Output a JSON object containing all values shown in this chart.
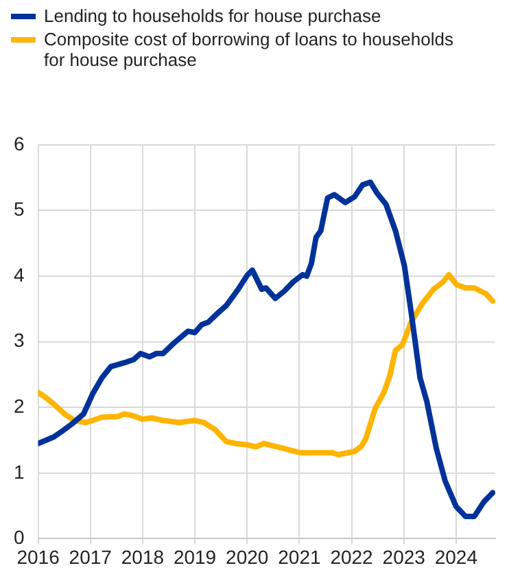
{
  "chart_data": {
    "type": "line",
    "xlim": [
      2016,
      2024.75
    ],
    "xticks": [
      2016,
      2017,
      2018,
      2019,
      2020,
      2021,
      2022,
      2023,
      2024
    ],
    "ylim": [
      0,
      6
    ],
    "yticks": [
      0,
      1,
      2,
      3,
      4,
      5,
      6
    ],
    "grid": true,
    "legend": "top left",
    "marker": "none",
    "line_style": "solid",
    "series": [
      {
        "name": "Lending to households for house purchase",
        "color": "#003299",
        "x": [
          2016,
          2016.3,
          2016.48,
          2016.65,
          2016.87,
          2017.04,
          2017.22,
          2017.39,
          2017.65,
          2017.83,
          2017.96,
          2018.13,
          2018.26,
          2018.39,
          2018.6,
          2018.87,
          2019.0,
          2019.13,
          2019.26,
          2019.43,
          2019.6,
          2019.83,
          2020.0,
          2020.1,
          2020.28,
          2020.36,
          2020.54,
          2020.71,
          2020.88,
          2021.06,
          2021.14,
          2021.23,
          2021.32,
          2021.41,
          2021.54,
          2021.67,
          2021.88,
          2022.06,
          2022.21,
          2022.36,
          2022.49,
          2022.66,
          2022.84,
          2023.01,
          2023.14,
          2023.31,
          2023.44,
          2023.62,
          2023.79,
          2024.0,
          2024.18,
          2024.35,
          2024.53,
          2024.7
        ],
        "values": [
          1.45,
          1.55,
          1.65,
          1.75,
          1.9,
          2.2,
          2.45,
          2.62,
          2.68,
          2.73,
          2.82,
          2.77,
          2.82,
          2.82,
          2.98,
          3.16,
          3.14,
          3.26,
          3.3,
          3.43,
          3.55,
          3.8,
          4.01,
          4.09,
          3.8,
          3.82,
          3.66,
          3.77,
          3.91,
          4.02,
          4.0,
          4.19,
          4.59,
          4.69,
          5.19,
          5.24,
          5.12,
          5.21,
          5.39,
          5.43,
          5.26,
          5.09,
          4.69,
          4.16,
          3.45,
          2.45,
          2.09,
          1.38,
          0.88,
          0.49,
          0.34,
          0.34,
          0.56,
          0.7
        ]
      },
      {
        "name": "Composite cost of borrowing of loans to households for house purchase",
        "color": "#ffb400",
        "x": [
          2016,
          2016.13,
          2016.3,
          2016.52,
          2016.7,
          2016.91,
          2017.04,
          2017.22,
          2017.52,
          2017.65,
          2017.83,
          2018.0,
          2018.17,
          2018.39,
          2018.7,
          2019.0,
          2019.17,
          2019.39,
          2019.6,
          2019.78,
          2020.0,
          2020.17,
          2020.32,
          2020.67,
          2021.01,
          2021.62,
          2021.75,
          2022.06,
          2022.19,
          2022.27,
          2022.45,
          2022.62,
          2022.73,
          2022.84,
          2022.97,
          2023.14,
          2023.36,
          2023.57,
          2023.75,
          2023.86,
          2024.01,
          2024.18,
          2024.35,
          2024.57,
          2024.7
        ],
        "values": [
          2.23,
          2.16,
          2.05,
          1.89,
          1.8,
          1.77,
          1.8,
          1.85,
          1.86,
          1.9,
          1.87,
          1.82,
          1.84,
          1.8,
          1.77,
          1.8,
          1.77,
          1.66,
          1.48,
          1.45,
          1.43,
          1.4,
          1.45,
          1.38,
          1.31,
          1.31,
          1.28,
          1.33,
          1.41,
          1.52,
          1.98,
          2.23,
          2.48,
          2.87,
          2.95,
          3.3,
          3.59,
          3.8,
          3.91,
          4.02,
          3.87,
          3.82,
          3.82,
          3.73,
          3.62
        ]
      }
    ]
  }
}
